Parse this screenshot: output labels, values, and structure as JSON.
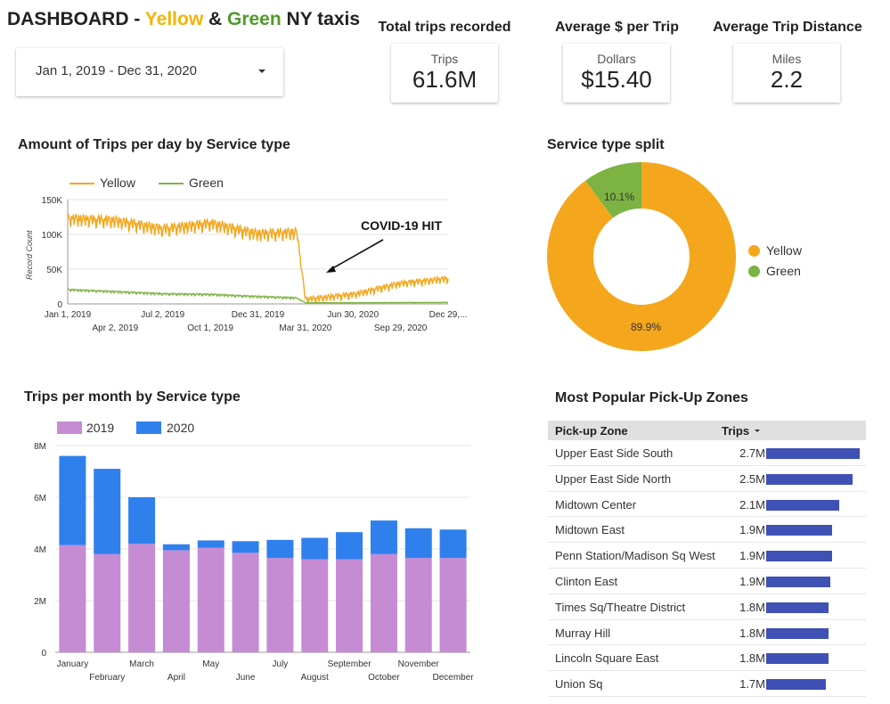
{
  "header": {
    "title_prefix": "DASHBOARD - ",
    "title_yellow": "Yellow",
    "title_amp": " & ",
    "title_green": "Green",
    "title_suffix": " NY taxis"
  },
  "date_range": {
    "value": "Jan 1, 2019 - Dec 31, 2020",
    "icon": "dropdown-caret-icon"
  },
  "kpis": [
    {
      "heading": "Total trips recorded",
      "label": "Trips",
      "value": "61.6M"
    },
    {
      "heading": "Average $ per Trip",
      "label": "Dollars",
      "value": "$15.40"
    },
    {
      "heading": "Average Trip Distance",
      "label": "Miles",
      "value": "2.2"
    }
  ],
  "colors": {
    "yellow": "#f4a71d",
    "green": "#7cb342",
    "y2019": "#c58bd3",
    "y2020": "#2f80ed",
    "table_bar": "#3f51b5"
  },
  "daily_chart": {
    "title": "Amount of Trips per day by Service type",
    "legend": [
      "Yellow",
      "Green"
    ],
    "annotation": "COVID-19 HIT",
    "ylabel": "Record Count",
    "y_ticks": [
      "150K",
      "100K",
      "50K",
      "0"
    ],
    "x_ticks_top": [
      "Jan 1, 2019",
      "Jul 2, 2019",
      "Dec 31, 2019",
      "Jun 30, 2020",
      "Dec 29,..."
    ],
    "x_ticks_bottom": [
      "Apr 2, 2019",
      "Oct 1, 2019",
      "Mar 31, 2020",
      "Sep 29, 2020"
    ]
  },
  "split_chart": {
    "title": "Service type split",
    "legend": [
      "Yellow",
      "Green"
    ],
    "labels": [
      "89.9%",
      "10.1%"
    ]
  },
  "monthly_chart": {
    "title": "Trips per month by Service type",
    "legend": [
      "2019",
      "2020"
    ],
    "y_ticks": [
      "8M",
      "6M",
      "4M",
      "2M",
      "0"
    ],
    "months": [
      "January",
      "February",
      "March",
      "April",
      "May",
      "June",
      "July",
      "August",
      "September",
      "October",
      "November",
      "December"
    ]
  },
  "zones": {
    "title": "Most Popular Pick-Up Zones",
    "col_zone": "Pick-up Zone",
    "col_trips": "Trips",
    "rows": [
      {
        "zone": "Upper East Side South",
        "trips": "2.7M",
        "value": 2.7
      },
      {
        "zone": "Upper East Side North",
        "trips": "2.5M",
        "value": 2.5
      },
      {
        "zone": "Midtown Center",
        "trips": "2.1M",
        "value": 2.1
      },
      {
        "zone": "Midtown East",
        "trips": "1.9M",
        "value": 1.9
      },
      {
        "zone": "Penn Station/Madison Sq West",
        "trips": "1.9M",
        "value": 1.9
      },
      {
        "zone": "Clinton East",
        "trips": "1.9M",
        "value": 1.85
      },
      {
        "zone": "Times Sq/Theatre District",
        "trips": "1.8M",
        "value": 1.8
      },
      {
        "zone": "Murray Hill",
        "trips": "1.8M",
        "value": 1.8
      },
      {
        "zone": "Lincoln Square East",
        "trips": "1.8M",
        "value": 1.8
      },
      {
        "zone": "Union Sq",
        "trips": "1.7M",
        "value": 1.72
      }
    ]
  },
  "chart_data": [
    {
      "type": "line",
      "title": "Amount of Trips per day by Service type",
      "ylabel": "Record Count",
      "ylim": [
        0,
        150000
      ],
      "x": [
        "2019-01-01",
        "2019-04-02",
        "2019-07-02",
        "2019-10-01",
        "2019-12-31",
        "2020-03-15",
        "2020-03-31",
        "2020-06-30",
        "2020-09-29",
        "2020-12-29"
      ],
      "series": [
        {
          "name": "Yellow",
          "values": [
            120000,
            117000,
            105000,
            113000,
            98000,
            100000,
            5000,
            12000,
            28000,
            35000
          ]
        },
        {
          "name": "Green",
          "values": [
            20000,
            17000,
            14000,
            13000,
            10000,
            8000,
            1500,
            1500,
            1800,
            2000
          ]
        }
      ]
    },
    {
      "type": "pie",
      "title": "Service type split",
      "categories": [
        "Yellow",
        "Green"
      ],
      "values": [
        89.9,
        10.1
      ]
    },
    {
      "type": "bar",
      "title": "Trips per month by Service type",
      "categories": [
        "January",
        "February",
        "March",
        "April",
        "May",
        "June",
        "July",
        "August",
        "September",
        "October",
        "November",
        "December"
      ],
      "ylim": [
        0,
        8000000
      ],
      "series": [
        {
          "name": "2019",
          "values": [
            4150000,
            3800000,
            4200000,
            3950000,
            4050000,
            3850000,
            3650000,
            3600000,
            3600000,
            3800000,
            3650000,
            3650000
          ]
        },
        {
          "name": "2020",
          "values": [
            3450000,
            3300000,
            1800000,
            230000,
            280000,
            450000,
            700000,
            830000,
            1050000,
            1300000,
            1150000,
            1100000
          ]
        }
      ]
    },
    {
      "type": "bar",
      "title": "Most Popular Pick-Up Zones",
      "categories": [
        "Upper East Side South",
        "Upper East Side North",
        "Midtown Center",
        "Midtown East",
        "Penn Station/Madison Sq West",
        "Clinton East",
        "Times Sq/Theatre District",
        "Murray Hill",
        "Lincoln Square East",
        "Union Sq"
      ],
      "values": [
        2.7,
        2.5,
        2.1,
        1.9,
        1.9,
        1.9,
        1.8,
        1.8,
        1.8,
        1.7
      ]
    }
  ]
}
